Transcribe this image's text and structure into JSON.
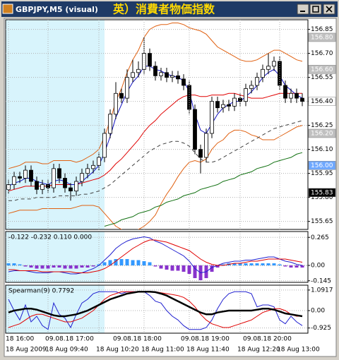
{
  "chart_data": {
    "type": "candlestick",
    "title": "GBPJPY,M5 (visual)",
    "banner": "英）消費者物価指数",
    "categories": [
      "18 Aug 2009",
      null,
      null,
      null,
      null,
      null,
      null,
      "18 Aug 09:40",
      null,
      null,
      null,
      null,
      null,
      null,
      null,
      null,
      "18 Aug 10:20",
      null,
      null,
      null,
      null,
      null,
      null,
      null,
      "18 Aug 11:00",
      null,
      null,
      null,
      null,
      null,
      null,
      null,
      "18 Aug 11:40",
      null,
      null,
      null,
      null,
      null,
      null,
      null,
      null,
      "18 Aug 12:20",
      null,
      null,
      null,
      null,
      null,
      null,
      "18 Aug 13:00",
      null,
      null,
      null,
      null
    ],
    "categories_upper": [
      "18 16:00",
      null,
      null,
      null,
      null,
      null,
      null,
      "09.08.18 17:00",
      null,
      null,
      null,
      null,
      null,
      null,
      null,
      null,
      null,
      null,
      null,
      "09.08.18 18:00",
      null,
      null,
      null,
      null,
      null,
      null,
      null,
      null,
      null,
      null,
      null,
      "09.08.18 19:00",
      null,
      null,
      null,
      null,
      null,
      null,
      null,
      null,
      null,
      null,
      "09.08.18 20:00",
      null,
      null,
      null,
      null,
      null,
      null,
      null,
      null,
      null,
      null
    ],
    "open": [
      155.85,
      155.88,
      155.93,
      155.92,
      155.97,
      155.9,
      155.85,
      155.88,
      155.86,
      155.98,
      155.92,
      155.86,
      155.84,
      155.9,
      155.95,
      155.98,
      156.0,
      156.05,
      156.2,
      156.32,
      156.45,
      156.42,
      156.55,
      156.58,
      156.6,
      156.7,
      156.62,
      156.56,
      156.58,
      156.55,
      156.56,
      156.54,
      156.5,
      156.35,
      156.1,
      156.05,
      156.2,
      156.4,
      156.36,
      156.38,
      156.37,
      156.42,
      156.4,
      156.48,
      156.5,
      156.55,
      156.6,
      156.62,
      156.65,
      156.5,
      156.42,
      156.45,
      156.42
    ],
    "high": [
      155.91,
      155.96,
      155.96,
      156.0,
      156.0,
      155.93,
      155.91,
      155.91,
      156.01,
      156.01,
      155.95,
      155.89,
      155.93,
      155.98,
      156.01,
      156.03,
      156.08,
      156.23,
      156.35,
      156.52,
      156.48,
      156.6,
      156.66,
      156.65,
      156.8,
      156.73,
      156.65,
      156.61,
      156.61,
      156.59,
      156.59,
      156.57,
      156.53,
      156.38,
      156.13,
      156.23,
      156.43,
      156.43,
      156.41,
      156.41,
      156.45,
      156.45,
      156.51,
      156.53,
      156.58,
      156.63,
      156.7,
      156.68,
      156.68,
      156.53,
      156.48,
      156.48,
      156.45
    ],
    "low": [
      155.82,
      155.85,
      155.89,
      155.89,
      155.87,
      155.82,
      155.82,
      155.83,
      155.83,
      155.89,
      155.83,
      155.78,
      155.81,
      155.87,
      155.92,
      155.95,
      155.97,
      156.02,
      156.17,
      156.29,
      156.39,
      156.39,
      156.52,
      156.55,
      156.57,
      156.59,
      156.53,
      156.53,
      156.52,
      156.52,
      156.51,
      156.47,
      156.32,
      156.07,
      155.95,
      156.02,
      156.17,
      156.33,
      156.33,
      156.34,
      156.34,
      156.37,
      156.37,
      156.45,
      156.47,
      156.52,
      156.57,
      156.59,
      156.47,
      156.39,
      156.39,
      156.39,
      156.37
    ],
    "close": [
      155.88,
      155.93,
      155.92,
      155.97,
      155.9,
      155.85,
      155.88,
      155.86,
      155.98,
      155.92,
      155.86,
      155.84,
      155.9,
      155.95,
      155.98,
      156.0,
      156.05,
      156.2,
      156.32,
      156.45,
      156.42,
      156.55,
      156.58,
      156.6,
      156.7,
      156.62,
      156.56,
      156.58,
      156.55,
      156.56,
      156.54,
      156.5,
      156.35,
      156.1,
      156.05,
      156.2,
      156.4,
      156.36,
      156.38,
      156.37,
      156.42,
      156.4,
      156.48,
      156.5,
      156.55,
      156.6,
      156.62,
      156.65,
      156.5,
      156.42,
      156.45,
      156.42,
      156.4
    ],
    "up_color": "#ffffff",
    "down_color": "#000000",
    "shaded_until": 17,
    "shade_color": "#d8f4fc",
    "grid": true,
    "ylim": [
      155.6,
      156.91
    ],
    "yticks": [
      {
        "value": 156.85,
        "label": "156.85"
      },
      {
        "value": 156.7,
        "label": "156.70"
      },
      {
        "value": 156.55,
        "label": "156.55"
      },
      {
        "value": 156.4,
        "label": "156.40"
      },
      {
        "value": 156.25,
        "label": "156.25"
      },
      {
        "value": 156.1,
        "label": "156.10"
      },
      {
        "value": 155.95,
        "label": "155.95"
      },
      {
        "value": 155.8,
        "label": "155.80"
      },
      {
        "value": 155.65,
        "label": "155.65"
      }
    ],
    "price_labels": [
      {
        "value": 156.8,
        "label": "156.80",
        "bg": "#c0c0c0",
        "fg": "#ffffff"
      },
      {
        "value": 156.6,
        "label": "156.60",
        "bg": "#c0c0c0",
        "fg": "#ffffff"
      },
      {
        "value": 156.4,
        "label": "156.40",
        "bg": "#ffffff",
        "fg": "#000000"
      },
      {
        "value": 156.2,
        "label": "156.20",
        "bg": "#c0c0c0",
        "fg": "#ffffff"
      },
      {
        "value": 156,
        "label": "156.00",
        "bg": "#6fa8ff",
        "fg": "#ffffff"
      },
      {
        "value": 155.83,
        "label": "155.83",
        "bg": "#000000",
        "fg": "#ffffff"
      }
    ],
    "series": [
      {
        "color": "#e06010",
        "values": [
          155.98,
          155.99,
          156.0,
          156.02,
          156.02,
          156.02,
          156.01,
          156.01,
          156.03,
          156.03,
          156.03,
          156.03,
          156.02,
          156.03,
          156.05,
          156.07,
          156.1,
          156.18,
          156.28,
          156.4,
          156.48,
          156.58,
          156.66,
          156.72,
          156.8,
          156.85,
          156.87,
          156.88,
          156.88,
          156.89,
          156.89,
          156.88,
          156.86,
          156.85,
          156.84,
          156.82,
          156.78,
          156.74,
          156.72,
          156.7,
          156.68,
          156.66,
          156.65,
          156.65,
          156.66,
          156.68,
          156.7,
          156.72,
          156.72,
          156.7,
          156.68,
          156.66,
          156.65
        ]
      },
      {
        "color": "#e06010",
        "values": [
          155.7,
          155.71,
          155.72,
          155.72,
          155.72,
          155.72,
          155.73,
          155.73,
          155.73,
          155.73,
          155.73,
          155.73,
          155.74,
          155.75,
          155.75,
          155.75,
          155.74,
          155.7,
          155.66,
          155.62,
          155.6,
          155.58,
          155.58,
          155.6,
          155.62,
          155.65,
          155.69,
          155.76,
          155.82,
          155.87,
          155.93,
          155.98,
          156.02,
          156.03,
          156.02,
          156.04,
          156.1,
          156.14,
          156.16,
          156.2,
          156.22,
          156.22,
          156.21,
          156.19,
          156.18,
          156.16,
          156.16,
          156.16,
          156.18,
          156.2,
          156.22,
          156.24,
          156.25
        ]
      },
      {
        "color": "#e00000",
        "values": [
          155.84,
          155.85,
          155.86,
          155.87,
          155.87,
          155.87,
          155.87,
          155.87,
          155.88,
          155.88,
          155.88,
          155.88,
          155.88,
          155.89,
          155.9,
          155.91,
          155.92,
          155.94,
          155.97,
          156.01,
          156.04,
          156.08,
          156.12,
          156.16,
          156.21,
          156.25,
          156.28,
          156.32,
          156.35,
          156.38,
          156.41,
          156.43,
          156.44,
          156.44,
          156.43,
          156.43,
          156.44,
          156.44,
          156.44,
          156.45,
          156.45,
          156.44,
          156.43,
          156.42,
          156.42,
          156.42,
          156.43,
          156.44,
          156.45,
          156.45,
          156.45,
          156.45,
          156.45
        ]
      },
      {
        "color": "#1010c0",
        "values": [
          155.87,
          155.89,
          155.9,
          155.92,
          155.92,
          155.9,
          155.89,
          155.88,
          155.9,
          155.91,
          155.9,
          155.88,
          155.88,
          155.9,
          155.93,
          155.96,
          156.0,
          156.08,
          156.18,
          156.3,
          156.38,
          156.46,
          156.52,
          156.56,
          156.62,
          156.62,
          156.6,
          156.59,
          156.57,
          156.56,
          156.55,
          156.53,
          156.46,
          156.32,
          156.22,
          156.2,
          156.26,
          156.32,
          156.36,
          156.38,
          156.4,
          156.4,
          156.43,
          156.46,
          156.5,
          156.55,
          156.58,
          156.6,
          156.56,
          156.5,
          156.47,
          156.44,
          156.42
        ]
      },
      {
        "color": "#404040",
        "dashed": true,
        "values": [
          155.78,
          155.78,
          155.79,
          155.79,
          155.79,
          155.8,
          155.8,
          155.8,
          155.8,
          155.81,
          155.81,
          155.81,
          155.81,
          155.82,
          155.82,
          155.83,
          155.84,
          155.86,
          155.88,
          155.91,
          155.94,
          155.97,
          156.0,
          156.03,
          156.06,
          156.09,
          156.11,
          156.13,
          156.14,
          156.15,
          156.15,
          156.14,
          156.12,
          156.08,
          156.04,
          156.02,
          156.02,
          156.03,
          156.05,
          156.07,
          156.09,
          156.11,
          156.13,
          156.15,
          156.17,
          156.19,
          156.21,
          156.23,
          156.24,
          156.25,
          156.26,
          156.27,
          156.28
        ]
      },
      {
        "color": "#107010",
        "values": [
          null,
          null,
          null,
          null,
          null,
          null,
          null,
          null,
          null,
          null,
          null,
          null,
          null,
          null,
          null,
          null,
          null,
          155.62,
          155.63,
          155.64,
          155.66,
          155.67,
          155.68,
          155.7,
          155.71,
          155.72,
          155.74,
          155.75,
          155.77,
          155.78,
          155.79,
          155.81,
          155.82,
          155.83,
          155.85,
          155.86,
          155.87,
          155.88,
          155.9,
          155.91,
          155.92,
          155.94,
          155.95,
          155.96,
          155.98,
          155.99,
          156.0,
          156.02,
          156.03,
          156.04,
          156.05,
          156.07,
          156.08
        ]
      }
    ],
    "indicators": [
      {
        "label": "-0.122 -0.232 0.110 0.000",
        "ylim": [
          -0.16,
          0.32
        ],
        "yticks": [
          0.265,
          {
            "value": 0,
            "label": "0.00"
          },
          -0.145
        ],
        "zero_line": true,
        "histogram": {
          "pos_color": "#3399ff",
          "neg_color": "#8833cc",
          "values": [
            0.02,
            0.02,
            0.01,
            -0.01,
            -0.02,
            -0.03,
            -0.03,
            -0.03,
            -0.02,
            -0.02,
            -0.03,
            -0.03,
            -0.03,
            -0.02,
            -0.02,
            -0.01,
            0.01,
            0.03,
            0.05,
            0.06,
            0.06,
            0.06,
            0.05,
            0.05,
            0.04,
            0.03,
            -0.01,
            -0.03,
            -0.04,
            -0.05,
            -0.05,
            -0.06,
            -0.08,
            -0.12,
            -0.14,
            -0.12,
            -0.06,
            -0.02,
            0.01,
            0.02,
            0.02,
            0.02,
            0.02,
            0.02,
            0.02,
            0.02,
            0.02,
            0.02,
            0.01,
            -0.01,
            -0.02,
            -0.02,
            -0.02
          ]
        },
        "series": [
          {
            "color": "#2020d0",
            "values": [
              -0.06,
              -0.05,
              -0.05,
              -0.05,
              -0.06,
              -0.07,
              -0.07,
              -0.07,
              -0.06,
              -0.06,
              -0.07,
              -0.08,
              -0.08,
              -0.07,
              -0.05,
              -0.03,
              0.0,
              0.05,
              0.1,
              0.16,
              0.2,
              0.23,
              0.25,
              0.26,
              0.27,
              0.26,
              0.23,
              0.21,
              0.18,
              0.15,
              0.12,
              0.09,
              0.04,
              -0.03,
              -0.07,
              -0.06,
              -0.02,
              0.0,
              0.02,
              0.03,
              0.04,
              0.04,
              0.05,
              0.05,
              0.06,
              0.07,
              0.08,
              0.08,
              0.06,
              0.04,
              0.03,
              0.01,
              0.0
            ]
          },
          {
            "color": "#e00000",
            "values": [
              -0.04,
              -0.04,
              -0.05,
              -0.05,
              -0.05,
              -0.05,
              -0.06,
              -0.06,
              -0.06,
              -0.06,
              -0.06,
              -0.06,
              -0.07,
              -0.07,
              -0.07,
              -0.06,
              -0.05,
              -0.03,
              0.0,
              0.04,
              0.08,
              0.12,
              0.16,
              0.19,
              0.22,
              0.24,
              0.24,
              0.23,
              0.22,
              0.2,
              0.18,
              0.16,
              0.14,
              0.1,
              0.06,
              0.03,
              0.01,
              0.0,
              0.0,
              0.01,
              0.02,
              0.02,
              0.03,
              0.04,
              0.04,
              0.05,
              0.06,
              0.06,
              0.06,
              0.06,
              0.05,
              0.04,
              0.03
            ]
          }
        ]
      },
      {
        "label": "Spearman(9) 0.7792",
        "ylim": [
          -1.2,
          1.35
        ],
        "yticks": [
          1.0917,
          {
            "value": 0,
            "label": "0.00"
          },
          -0.925
        ],
        "zero_line": false,
        "series": [
          {
            "color": "#2020d0",
            "width": 1,
            "values": [
              0.6,
              0.0,
              -0.5,
              0.3,
              -0.6,
              -0.3,
              -0.8,
              -1.0,
              0.4,
              -0.2,
              -0.4,
              -0.9,
              -0.2,
              0.4,
              0.6,
              0.9,
              1.0,
              1.0,
              1.0,
              1.0,
              0.9,
              1.0,
              1.0,
              1.0,
              1.0,
              0.8,
              0.5,
              0.4,
              0.0,
              -0.3,
              -0.5,
              -0.8,
              -1.0,
              -1.0,
              -1.0,
              -0.9,
              -0.5,
              0.1,
              0.6,
              0.9,
              1.0,
              1.0,
              1.0,
              0.9,
              0.2,
              0.3,
              0.3,
              0.2,
              -0.5,
              -0.7,
              -0.3,
              -0.6,
              -0.8
            ]
          },
          {
            "color": "#e00000",
            "width": 1,
            "values": [
              -0.9,
              -0.8,
              -0.7,
              -0.5,
              -0.3,
              -0.2,
              -0.2,
              -0.3,
              -0.4,
              -0.5,
              -0.6,
              -0.6,
              -0.5,
              -0.4,
              -0.2,
              0.0,
              0.3,
              0.6,
              0.8,
              0.9,
              1.0,
              1.0,
              1.0,
              1.0,
              1.0,
              1.0,
              1.0,
              0.95,
              0.9,
              0.85,
              0.8,
              0.7,
              0.5,
              0.2,
              -0.2,
              -0.5,
              -0.7,
              -0.8,
              -0.9,
              -0.9,
              -0.8,
              -0.7,
              -0.6,
              -0.5,
              -0.3,
              -0.1,
              0.0,
              0.1,
              0.1,
              0.0,
              -0.2,
              -0.3,
              -0.3
            ]
          },
          {
            "color": "#000000",
            "width": 2.5,
            "values": [
              -0.1,
              0.0,
              0.05,
              0.1,
              0.1,
              0.05,
              -0.05,
              -0.15,
              -0.25,
              -0.3,
              -0.3,
              -0.25,
              -0.2,
              -0.1,
              0.0,
              0.15,
              0.3,
              0.45,
              0.6,
              0.7,
              0.8,
              0.9,
              0.95,
              1.0,
              1.0,
              1.0,
              0.98,
              0.9,
              0.8,
              0.65,
              0.5,
              0.35,
              0.2,
              0.05,
              -0.1,
              -0.2,
              -0.2,
              -0.1,
              -0.05,
              0.0,
              0.0,
              0.0,
              0.0,
              0.0,
              0.05,
              0.1,
              0.1,
              0.05,
              -0.05,
              -0.15,
              -0.2,
              -0.25,
              -0.3
            ]
          }
        ]
      }
    ]
  }
}
